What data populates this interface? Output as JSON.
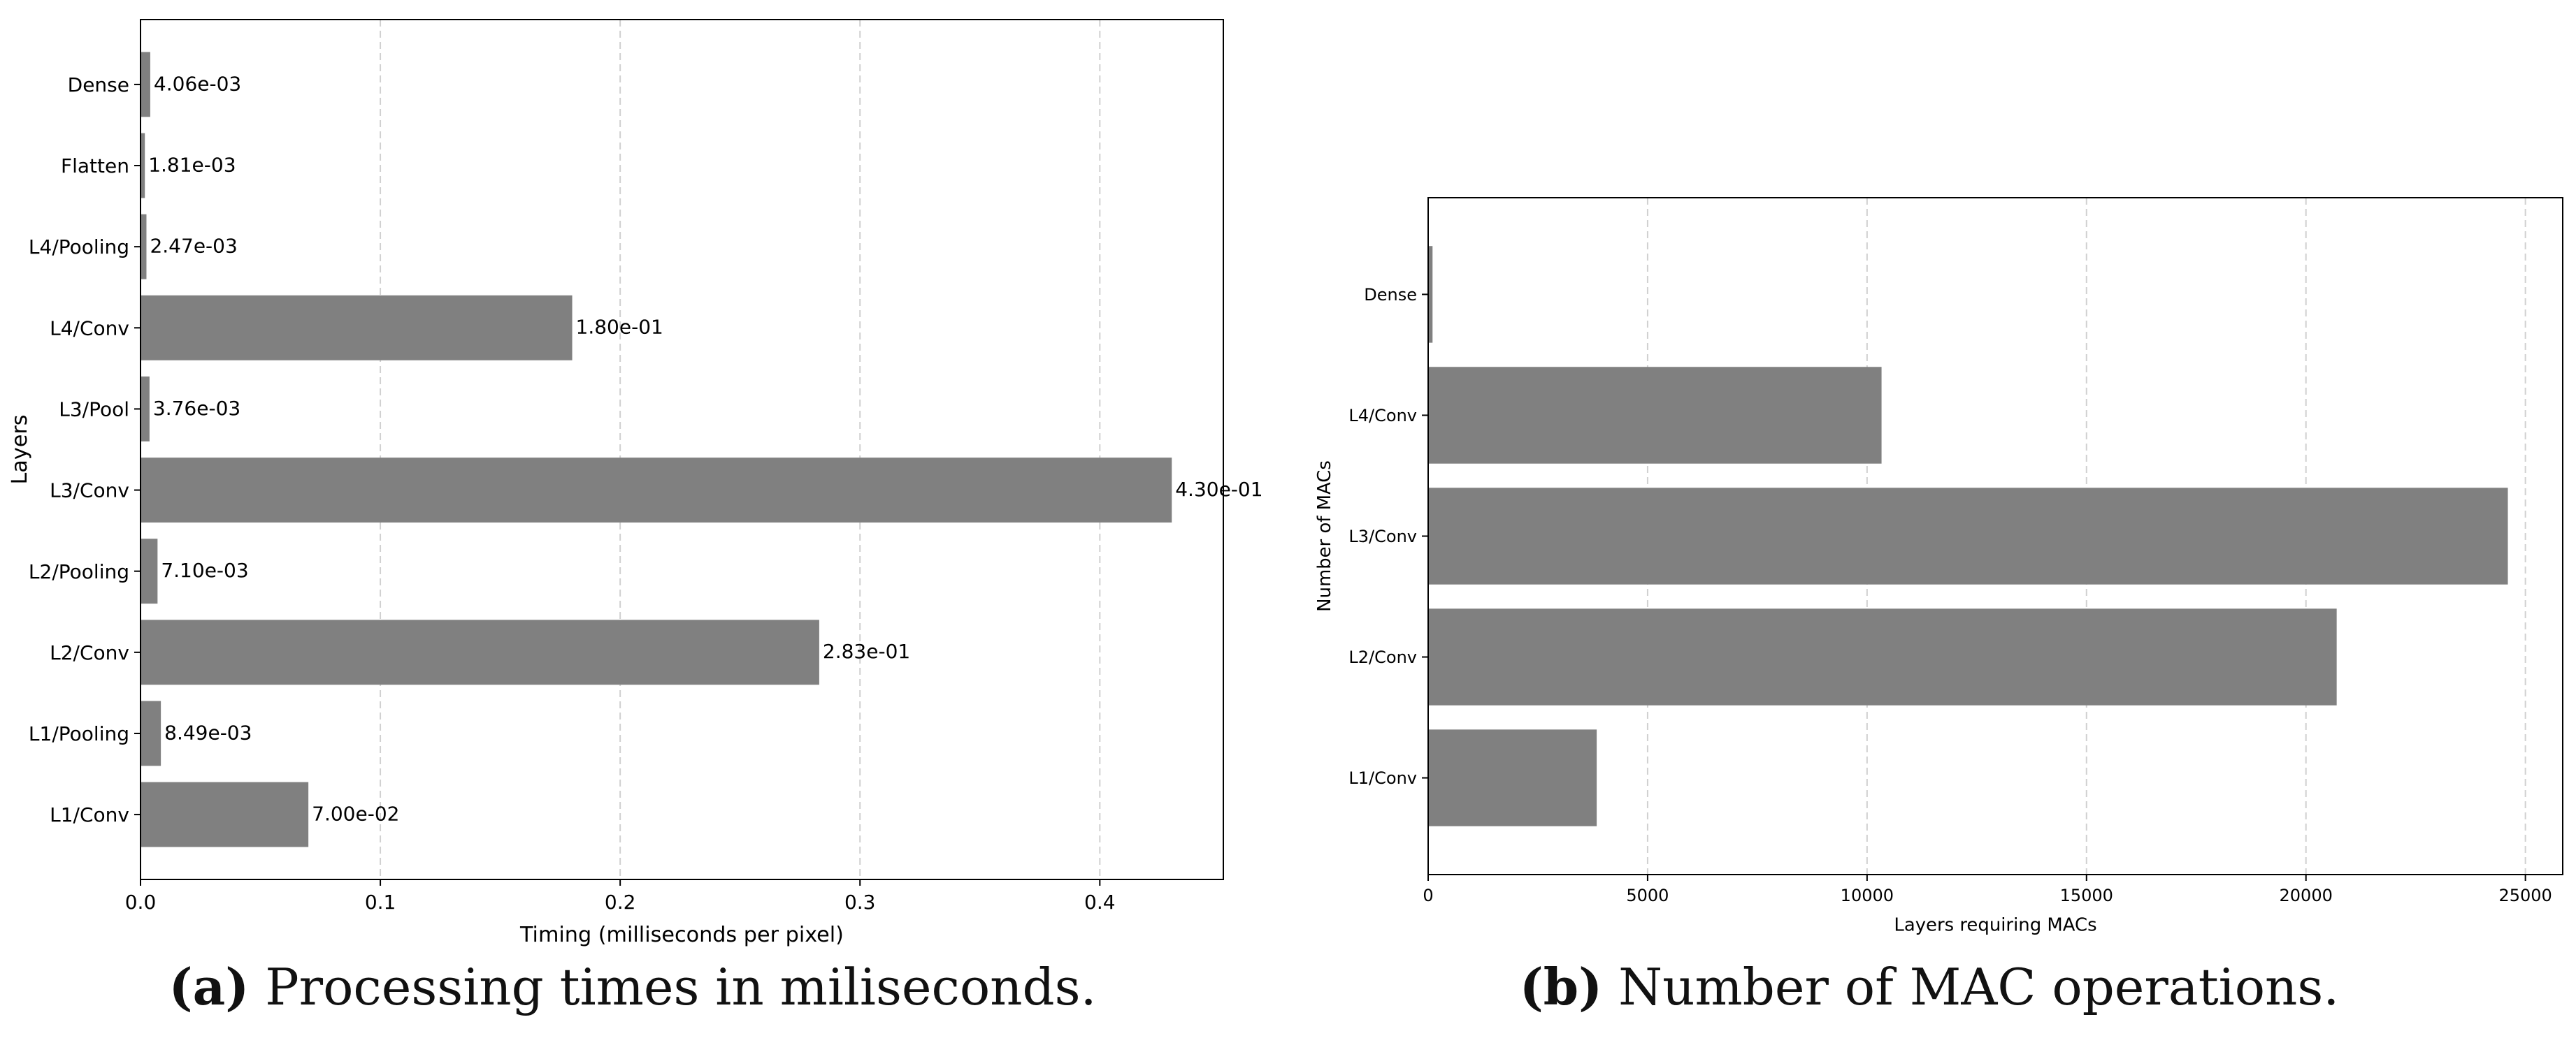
{
  "chart_data": [
    {
      "type": "bar",
      "orientation": "horizontal",
      "categories": [
        "L1/Conv",
        "L1/Pooling",
        "L2/Conv",
        "L2/Pooling",
        "L3/Conv",
        "L3/Pool",
        "L4/Conv",
        "L4/Pooling",
        "Flatten",
        "Dense"
      ],
      "values": [
        0.07,
        0.00849,
        0.283,
        0.0071,
        0.43,
        0.00376,
        0.18,
        0.00247,
        0.00181,
        0.00406
      ],
      "data_labels": [
        "7.00e-02",
        "8.49e-03",
        "2.83e-01",
        "7.10e-03",
        "4.30e-01",
        "3.76e-03",
        "1.80e-01",
        "2.47e-03",
        "1.81e-03",
        "4.06e-03"
      ],
      "xlabel": "Timing (milliseconds per pixel)",
      "ylabel": "Layers",
      "xlim": [
        0,
        0.4515
      ],
      "xticks": [
        0,
        0.1,
        0.2,
        0.3,
        0.4
      ],
      "xtick_labels": [
        "0.0",
        "0.1",
        "0.2",
        "0.3",
        "0.4"
      ],
      "grid": "x dashed",
      "bar_color": "#808080",
      "caption_label": "(a)",
      "caption_text": "Processing times in miliseconds."
    },
    {
      "type": "bar",
      "orientation": "horizontal",
      "categories": [
        "L1/Conv",
        "L2/Conv",
        "L3/Conv",
        "L4/Conv",
        "Dense"
      ],
      "values": [
        3840,
        20700,
        24600,
        10330,
        100
      ],
      "xlabel": "Layers requiring MACs",
      "ylabel": "Number of MACs",
      "xlim": [
        0,
        25850
      ],
      "xticks": [
        0,
        5000,
        10000,
        15000,
        20000,
        25000
      ],
      "xtick_labels": [
        "0",
        "5000",
        "10000",
        "15000",
        "20000",
        "25000"
      ],
      "grid": "x dashed",
      "bar_color": "#808080",
      "caption_label": "(b)",
      "caption_text": "Number of MAC operations."
    }
  ]
}
